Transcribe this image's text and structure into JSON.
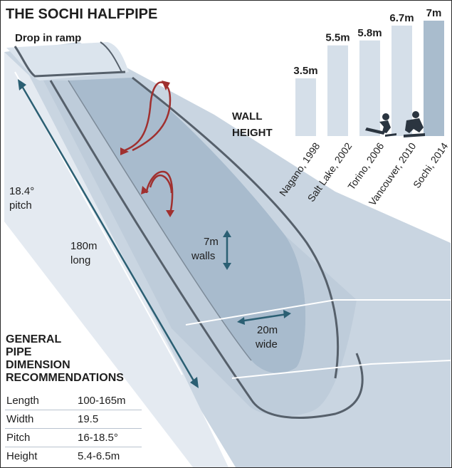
{
  "title": "THE SOCHI HALFPIPE",
  "labels": {
    "drop_in": "Drop in ramp",
    "pitch_value": "18.4°",
    "pitch_word": "pitch",
    "length_value": "180m",
    "length_word": "long",
    "walls_value": "7m",
    "walls_word": "walls",
    "width_value": "20m",
    "width_word": "wide"
  },
  "chart_data": {
    "type": "bar",
    "title_lines": [
      "WALL",
      "HEIGHT"
    ],
    "categories": [
      "Nagano, 1998",
      "Salt Lake, 2002",
      "Torino, 2006",
      "Vancouver, 2010",
      "Sochi, 2014"
    ],
    "values": [
      3.5,
      5.5,
      5.8,
      6.7,
      7
    ],
    "value_labels": [
      "3.5m",
      "5.5m",
      "5.8m",
      "6.7m",
      "7m"
    ],
    "ylim": [
      0,
      7
    ],
    "colors": {
      "bar": "#d5dfe9",
      "highlight": "#a9bccd"
    }
  },
  "recommendations": {
    "heading": [
      "GENERAL",
      "PIPE",
      "DIMENSION",
      "RECOMMENDATIONS"
    ],
    "rows": [
      {
        "label": "Length",
        "value": "100-165m"
      },
      {
        "label": "Width",
        "value": "19.5"
      },
      {
        "label": "Pitch",
        "value": "16-18.5°"
      },
      {
        "label": "Height",
        "value": "5.4-6.5m"
      }
    ]
  },
  "colors": {
    "pipe_light": "#d9e2ec",
    "pipe_mid": "#b7c6d5",
    "pipe_dark": "#9aafc4",
    "line": "#56606b",
    "arrow": "#2b5f73",
    "trick": "#a0302f"
  }
}
